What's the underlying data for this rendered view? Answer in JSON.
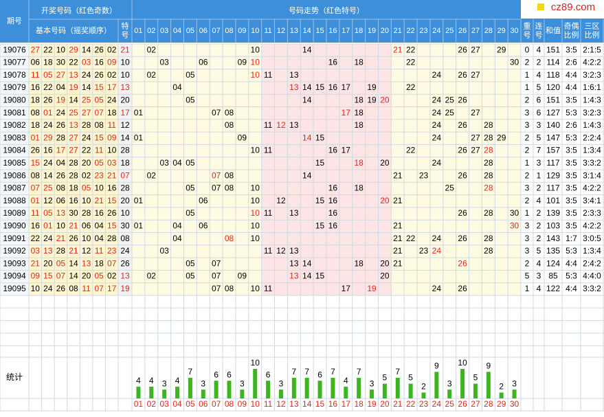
{
  "logo": "cz89.com",
  "header": {
    "period": "期号",
    "draw": "开奖号码（红色奇数）",
    "trend": "号码走势（红色特号）",
    "basic": "基本号码（摇奖顺序）",
    "special": "特号",
    "repeat": "重号",
    "consecutive": "连号",
    "sum": "和值",
    "odd_even": "奇偶比例",
    "zones": "三区比例"
  },
  "numbers": [
    "01",
    "02",
    "03",
    "04",
    "05",
    "06",
    "07",
    "08",
    "09",
    "10",
    "11",
    "12",
    "13",
    "14",
    "15",
    "16",
    "17",
    "18",
    "19",
    "20",
    "21",
    "22",
    "23",
    "24",
    "25",
    "26",
    "27",
    "28",
    "29",
    "30"
  ],
  "rows": [
    {
      "period": "19076",
      "basic": [
        "27",
        "22",
        "10",
        "29",
        "14",
        "26",
        "02"
      ],
      "special": "21",
      "trend": [
        "02",
        "10",
        "14",
        "21",
        "22",
        "26",
        "27",
        "29"
      ],
      "repeat": 0,
      "consecutive": 4,
      "sum": 151,
      "odd_even": "3:5",
      "zones": "2:1:5"
    },
    {
      "period": "19077",
      "basic": [
        "06",
        "18",
        "30",
        "22",
        "03",
        "16",
        "09"
      ],
      "special": "10",
      "trend": [
        "03",
        "06",
        "09",
        "10",
        "16",
        "18",
        "22",
        "30"
      ],
      "repeat": 2,
      "consecutive": 2,
      "sum": 114,
      "odd_even": "2:6",
      "zones": "4:2:2"
    },
    {
      "period": "19078",
      "basic": [
        "11",
        "05",
        "27",
        "13",
        "24",
        "26",
        "02"
      ],
      "special": "10",
      "trend": [
        "02",
        "05",
        "10",
        "11",
        "13",
        "24",
        "26",
        "27"
      ],
      "repeat": 1,
      "consecutive": 4,
      "sum": 118,
      "odd_even": "4:4",
      "zones": "3:2:3"
    },
    {
      "period": "19079",
      "basic": [
        "16",
        "22",
        "04",
        "19",
        "14",
        "15",
        "17"
      ],
      "special": "13",
      "trend": [
        "04",
        "13",
        "14",
        "15",
        "16",
        "17",
        "19",
        "22"
      ],
      "repeat": 1,
      "consecutive": 5,
      "sum": 120,
      "odd_even": "4:4",
      "zones": "1:6:1"
    },
    {
      "period": "19080",
      "basic": [
        "18",
        "26",
        "19",
        "14",
        "25",
        "05",
        "24"
      ],
      "special": "20",
      "trend": [
        "05",
        "14",
        "18",
        "19",
        "20",
        "24",
        "25",
        "26"
      ],
      "repeat": 2,
      "consecutive": 6,
      "sum": 151,
      "odd_even": "3:5",
      "zones": "1:4:3"
    },
    {
      "period": "19081",
      "basic": [
        "08",
        "01",
        "24",
        "25",
        "27",
        "07",
        "18"
      ],
      "special": "17",
      "trend": [
        "01",
        "07",
        "08",
        "17",
        "18",
        "24",
        "25",
        "27"
      ],
      "repeat": 3,
      "consecutive": 6,
      "sum": 127,
      "odd_even": "5:3",
      "zones": "3:2:3"
    },
    {
      "period": "19082",
      "basic": [
        "18",
        "24",
        "26",
        "13",
        "28",
        "08",
        "11"
      ],
      "special": "12",
      "trend": [
        "08",
        "11",
        "12",
        "13",
        "18",
        "24",
        "26",
        "28"
      ],
      "repeat": 3,
      "consecutive": 3,
      "sum": 140,
      "odd_even": "2:6",
      "zones": "1:4:3"
    },
    {
      "period": "19083",
      "basic": [
        "01",
        "29",
        "28",
        "27",
        "24",
        "15",
        "09"
      ],
      "special": "14",
      "trend": [
        "01",
        "09",
        "14",
        "15",
        "24",
        "27",
        "28",
        "29"
      ],
      "repeat": 2,
      "consecutive": 5,
      "sum": 147,
      "odd_even": "5:3",
      "zones": "2:2:4"
    },
    {
      "period": "19084",
      "basic": [
        "26",
        "16",
        "17",
        "27",
        "22",
        "11",
        "10"
      ],
      "special": "28",
      "trend": [
        "10",
        "11",
        "16",
        "17",
        "22",
        "26",
        "27",
        "28"
      ],
      "repeat": 2,
      "consecutive": 7,
      "sum": 157,
      "odd_even": "3:5",
      "zones": "1:3:4"
    },
    {
      "period": "19085",
      "basic": [
        "15",
        "24",
        "04",
        "28",
        "20",
        "05",
        "03"
      ],
      "special": "18",
      "trend": [
        "03",
        "04",
        "05",
        "15",
        "18",
        "20",
        "24",
        "28"
      ],
      "repeat": 1,
      "consecutive": 3,
      "sum": 117,
      "odd_even": "3:5",
      "zones": "3:3:2"
    },
    {
      "period": "19086",
      "basic": [
        "08",
        "14",
        "26",
        "28",
        "02",
        "23",
        "21"
      ],
      "special": "07",
      "trend": [
        "02",
        "07",
        "08",
        "14",
        "21",
        "23",
        "26",
        "28"
      ],
      "repeat": 2,
      "consecutive": 1,
      "sum": 129,
      "odd_even": "3:5",
      "zones": "3:1:4"
    },
    {
      "period": "19087",
      "basic": [
        "07",
        "25",
        "08",
        "18",
        "05",
        "10",
        "16"
      ],
      "special": "28",
      "trend": [
        "05",
        "07",
        "08",
        "10",
        "16",
        "18",
        "25",
        "28"
      ],
      "repeat": 3,
      "consecutive": 2,
      "sum": 117,
      "odd_even": "3:5",
      "zones": "4:2:2"
    },
    {
      "period": "19088",
      "basic": [
        "01",
        "12",
        "06",
        "16",
        "10",
        "21",
        "15"
      ],
      "special": "20",
      "trend": [
        "01",
        "06",
        "10",
        "12",
        "15",
        "16",
        "20",
        "21"
      ],
      "repeat": 2,
      "consecutive": 4,
      "sum": 101,
      "odd_even": "3:5",
      "zones": "3:4:1"
    },
    {
      "period": "19089",
      "basic": [
        "11",
        "05",
        "13",
        "30",
        "28",
        "16",
        "26"
      ],
      "special": "10",
      "trend": [
        "05",
        "10",
        "11",
        "13",
        "16",
        "26",
        "28",
        "30"
      ],
      "repeat": 1,
      "consecutive": 2,
      "sum": 139,
      "odd_even": "3:5",
      "zones": "2:3:3"
    },
    {
      "period": "19090",
      "basic": [
        "16",
        "01",
        "10",
        "21",
        "06",
        "04",
        "15"
      ],
      "special": "30",
      "trend": [
        "01",
        "04",
        "06",
        "10",
        "15",
        "16",
        "21",
        "30"
      ],
      "repeat": 3,
      "consecutive": 2,
      "sum": 103,
      "odd_even": "3:5",
      "zones": "4:2:2"
    },
    {
      "period": "19091",
      "basic": [
        "22",
        "24",
        "21",
        "26",
        "10",
        "04",
        "28"
      ],
      "special": "08",
      "trend": [
        "04",
        "08",
        "10",
        "21",
        "22",
        "24",
        "26",
        "28"
      ],
      "repeat": 3,
      "consecutive": 2,
      "sum": 143,
      "odd_even": "1:7",
      "zones": "3:0:5"
    },
    {
      "period": "19092",
      "basic": [
        "03",
        "13",
        "28",
        "21",
        "12",
        "11",
        "23"
      ],
      "special": "24",
      "trend": [
        "03",
        "11",
        "12",
        "13",
        "21",
        "23",
        "24",
        "28"
      ],
      "repeat": 3,
      "consecutive": 5,
      "sum": 135,
      "odd_even": "5:3",
      "zones": "1:3:4"
    },
    {
      "period": "19093",
      "basic": [
        "21",
        "20",
        "05",
        "14",
        "13",
        "18",
        "07"
      ],
      "special": "26",
      "trend": [
        "05",
        "07",
        "13",
        "14",
        "18",
        "20",
        "21",
        "26"
      ],
      "repeat": 2,
      "consecutive": 4,
      "sum": 124,
      "odd_even": "4:4",
      "zones": "2:4:2"
    },
    {
      "period": "19094",
      "basic": [
        "09",
        "15",
        "07",
        "14",
        "20",
        "05",
        "02"
      ],
      "special": "13",
      "trend": [
        "02",
        "05",
        "07",
        "09",
        "13",
        "14",
        "15",
        "20"
      ],
      "repeat": 5,
      "consecutive": 3,
      "sum": 85,
      "odd_even": "5:3",
      "zones": "4:4:0"
    },
    {
      "period": "19095",
      "basic": [
        "10",
        "24",
        "26",
        "08",
        "11",
        "07",
        "17"
      ],
      "special": "19",
      "trend": [
        "07",
        "08",
        "10",
        "11",
        "17",
        "19",
        "24",
        "26"
      ],
      "repeat": 1,
      "consecutive": 4,
      "sum": 122,
      "odd_even": "4:4",
      "zones": "3:3:2"
    }
  ],
  "stats": {
    "label": "统计",
    "counts": [
      4,
      4,
      3,
      4,
      7,
      3,
      6,
      6,
      3,
      10,
      6,
      3,
      7,
      7,
      6,
      7,
      4,
      7,
      3,
      5,
      7,
      5,
      2,
      9,
      3,
      10,
      5,
      9,
      2,
      3
    ]
  }
}
